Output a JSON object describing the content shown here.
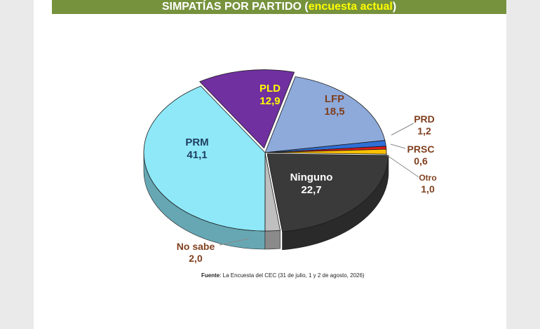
{
  "header": {
    "title_main": "SIMPATÍAS POR PARTIDO",
    "paren_open": "(",
    "title_accent": "encuesta actual",
    "paren_close": ")",
    "bar_color": "#76923c",
    "accent_color": "#ffff00"
  },
  "chart_data": {
    "type": "pie",
    "style": "3d-exploded",
    "title": "SIMPATÍAS POR PARTIDO (encuesta actual)",
    "slices": [
      {
        "label": "PLD",
        "value": 12.9,
        "value_text": "12,9",
        "color": "#7030a0",
        "label_color": "#ffff00",
        "label_position": "inside"
      },
      {
        "label": "LFP",
        "value": 18.5,
        "value_text": "18,5",
        "color": "#8eaadb",
        "label_color": "#7f3f1f",
        "label_position": "inside"
      },
      {
        "label": "PRD",
        "value": 1.2,
        "value_text": "1,2",
        "color": "#2f6fd6",
        "label_color": "#7f3f1f",
        "label_position": "outside"
      },
      {
        "label": "PRSC",
        "value": 0.6,
        "value_text": "0,6",
        "color": "#e31a1c",
        "label_color": "#7f3f1f",
        "label_position": "outside"
      },
      {
        "label": "Otro",
        "value": 1.0,
        "value_text": "1,0",
        "color": "#ffc000",
        "label_color": "#7f3f1f",
        "label_position": "outside"
      },
      {
        "label": "Ninguno",
        "value": 22.7,
        "value_text": "22,7",
        "color": "#3a3a3a",
        "label_color": "#ffffff",
        "label_position": "inside"
      },
      {
        "label": "No sabe",
        "value": 2.0,
        "value_text": "2,0",
        "color": "#bfbfbf",
        "label_color": "#7f3f1f",
        "label_position": "outside"
      },
      {
        "label": "PRM",
        "value": 41.1,
        "value_text": "41,1",
        "color": "#8ee8f8",
        "label_color": "#1f3f5f",
        "label_position": "inside"
      }
    ]
  },
  "source": {
    "label": "Fuente",
    "text": ": La Encuesta del CEC (31 de julio, 1 y 2 de agosto, 2026)"
  }
}
